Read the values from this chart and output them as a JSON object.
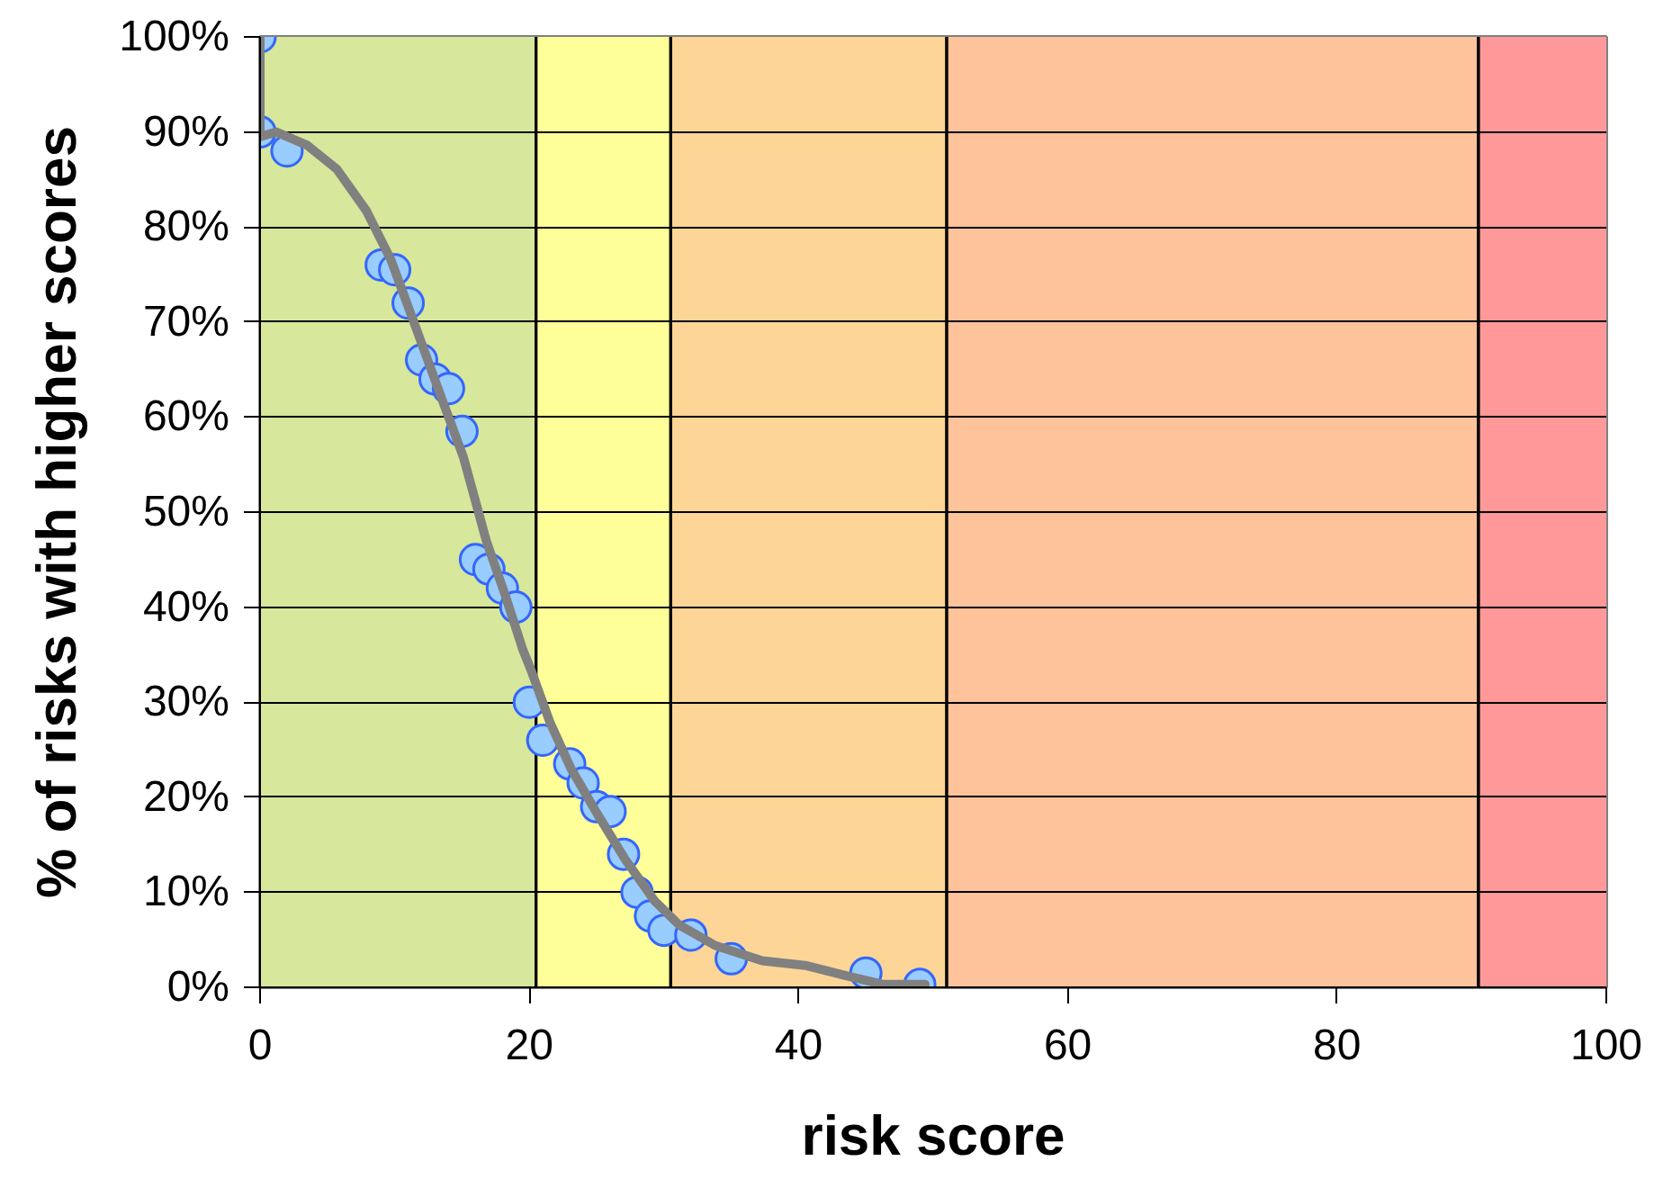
{
  "chart_data": {
    "type": "scatter",
    "xlabel": "risk score",
    "ylabel": "% of risks with higher scores",
    "xlim": [
      0,
      100
    ],
    "xticks": [
      0,
      20,
      40,
      60,
      80,
      100
    ],
    "ylim": [
      0,
      100
    ],
    "yticks": [
      {
        "value": 0,
        "label": "0%"
      },
      {
        "value": 10,
        "label": "10%"
      },
      {
        "value": 20,
        "label": "20%"
      },
      {
        "value": 30,
        "label": "30%"
      },
      {
        "value": 40,
        "label": "40%"
      },
      {
        "value": 50,
        "label": "50%"
      },
      {
        "value": 60,
        "label": "60%"
      },
      {
        "value": 70,
        "label": "70%"
      },
      {
        "value": 80,
        "label": "80%"
      },
      {
        "value": 90,
        "label": "90%"
      },
      {
        "value": 100,
        "label": "100%"
      }
    ],
    "grid": "y",
    "marker": "circle",
    "bands": [
      {
        "axis": "x",
        "from": 0,
        "to": 20.5,
        "color": "#d7e79b"
      },
      {
        "axis": "x",
        "from": 20.5,
        "to": 30.5,
        "color": "#ffff99"
      },
      {
        "axis": "x",
        "from": 30.5,
        "to": 51,
        "color": "#fcd597"
      },
      {
        "axis": "x",
        "from": 51,
        "to": 90.5,
        "color": "#fec39a"
      },
      {
        "axis": "x",
        "from": 90.5,
        "to": 100,
        "color": "#ff9999"
      }
    ],
    "series": [
      {
        "color": "#99ccff",
        "x": [
          0,
          0,
          2,
          9,
          10,
          11,
          12,
          13,
          14,
          15,
          16,
          17,
          18,
          19,
          20,
          21,
          23,
          24,
          25,
          26,
          27,
          28,
          29,
          30,
          32,
          35,
          45,
          49
        ],
        "values": [
          100,
          90,
          88,
          76,
          75.5,
          72,
          66,
          64,
          63,
          58.5,
          45,
          44,
          42,
          40,
          30,
          26,
          23.5,
          21.5,
          19,
          18.5,
          14,
          10,
          7.5,
          6,
          5.5,
          3,
          1.5,
          0.3
        ]
      },
      {
        "type": "line",
        "color": "#808080",
        "marker": "none",
        "line_style": "solid",
        "x": [
          0,
          0,
          1.2,
          3.5,
          5.7,
          7.9,
          9.7,
          11.5,
          13.3,
          15.1,
          16.8,
          18.2,
          19.5,
          20.2,
          21.5,
          23.1,
          24.9,
          27.1,
          29.3,
          31.1,
          33.8,
          37.3,
          40.5,
          43.6,
          46.3,
          49.4
        ],
        "values": [
          100,
          89.5,
          90,
          88.6,
          86.1,
          81.7,
          76.6,
          69.7,
          62.7,
          55.8,
          47,
          41.3,
          35.6,
          33.1,
          28,
          23,
          18.6,
          13.5,
          9.1,
          6.6,
          4.4,
          2.8,
          2.3,
          1.2,
          0.3,
          0.3
        ]
      }
    ]
  }
}
